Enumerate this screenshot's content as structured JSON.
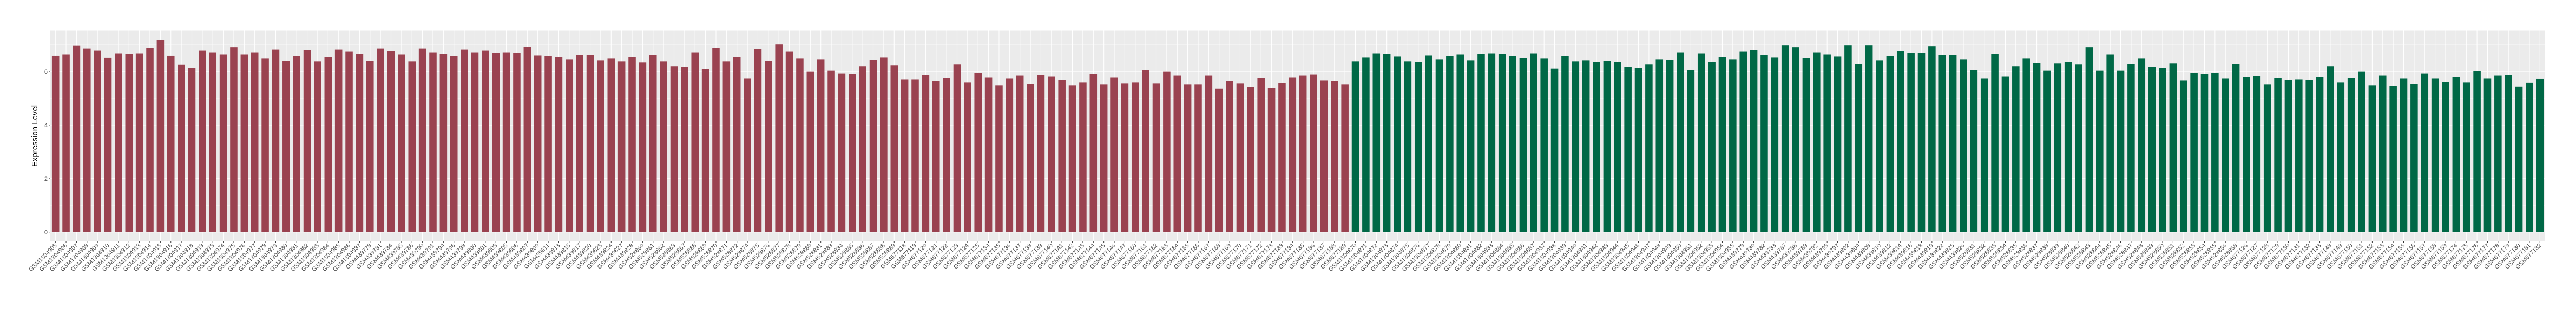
{
  "chart_data": {
    "type": "bar",
    "title": "",
    "xlabel": "",
    "ylabel": "Expression Level",
    "ylim": [
      -0.35,
      7.53
    ],
    "yticks": [
      0,
      2,
      4,
      6
    ],
    "grid": true,
    "background": "#EBEBEB",
    "series": [
      {
        "color": "#9A4250",
        "categories": [
          "GSM1304905",
          "GSM1304906",
          "GSM1304907",
          "GSM1304908",
          "GSM1304909",
          "GSM1304910",
          "GSM1304911",
          "GSM1304912",
          "GSM1304913",
          "GSM1304914",
          "GSM1304915",
          "GSM1304916",
          "GSM1304917",
          "GSM1304918",
          "GSM1304919",
          "GSM1304973",
          "GSM1304974",
          "GSM1304975",
          "GSM1304976",
          "GSM1304977",
          "GSM1304978",
          "GSM1304979",
          "GSM1304980",
          "GSM1304981",
          "GSM1304982",
          "GSM1304983",
          "GSM1304984",
          "GSM1304985",
          "GSM1304986",
          "GSM1304987",
          "GSM439778",
          "GSM439781",
          "GSM439784",
          "GSM439785",
          "GSM439786",
          "GSM439790",
          "GSM439791",
          "GSM439794",
          "GSM439796",
          "GSM439798",
          "GSM439800",
          "GSM439801",
          "GSM439803",
          "GSM439805",
          "GSM439806",
          "GSM439807",
          "GSM439809",
          "GSM439811",
          "GSM439813",
          "GSM439815",
          "GSM439817",
          "GSM439820",
          "GSM439823",
          "GSM439824",
          "GSM439827",
          "GSM439828",
          "GSM528860",
          "GSM528861",
          "GSM528862",
          "GSM528863",
          "GSM528867",
          "GSM528868",
          "GSM528869",
          "GSM528870",
          "GSM528871",
          "GSM528872",
          "GSM528874",
          "GSM528875",
          "GSM528876",
          "GSM528877",
          "GSM528878",
          "GSM528879",
          "GSM528880",
          "GSM528881",
          "GSM528883",
          "GSM528884",
          "GSM528885",
          "GSM528886",
          "GSM528887",
          "GSM528888",
          "GSM528889",
          "GSM677118",
          "GSM677119",
          "GSM677120",
          "GSM677121",
          "GSM677122",
          "GSM677123",
          "GSM677124",
          "GSM677125",
          "GSM677134",
          "GSM677135",
          "GSM677136",
          "GSM677137",
          "GSM677138",
          "GSM677139",
          "GSM677140",
          "GSM677141",
          "GSM677142",
          "GSM677143",
          "GSM677144",
          "GSM677145",
          "GSM677146",
          "GSM677147",
          "GSM677160",
          "GSM677161",
          "GSM677162",
          "GSM677163",
          "GSM677164",
          "GSM677165",
          "GSM677166",
          "GSM677167",
          "GSM677168",
          "GSM677169",
          "GSM677170",
          "GSM677171",
          "GSM677172",
          "GSM677173",
          "GSM677183",
          "GSM677184",
          "GSM677185",
          "GSM677186",
          "GSM677187",
          "GSM677188",
          "GSM677189"
        ],
        "values": [
          6.59,
          6.64,
          6.96,
          6.86,
          6.78,
          6.51,
          6.68,
          6.66,
          6.68,
          6.88,
          7.18,
          6.59,
          6.25,
          6.13,
          6.78,
          6.72,
          6.64,
          6.91,
          6.64,
          6.72,
          6.48,
          6.82,
          6.4,
          6.58,
          6.8,
          6.38,
          6.54,
          6.82,
          6.74,
          6.66,
          6.4,
          6.86,
          6.76,
          6.64,
          6.38,
          6.86,
          6.72,
          6.66,
          6.58,
          6.82,
          6.72,
          6.78,
          6.7,
          6.72,
          6.7,
          6.93,
          6.6,
          6.58,
          6.54,
          6.46,
          6.62,
          6.62,
          6.42,
          6.48,
          6.38,
          6.54,
          6.34,
          6.62,
          6.38,
          6.2,
          6.18,
          6.72,
          6.09,
          6.89,
          6.38,
          6.54,
          5.73,
          6.84,
          6.4,
          7.01,
          6.74,
          6.48,
          5.99,
          6.46,
          6.03,
          5.93,
          5.91,
          6.2,
          6.44,
          6.52,
          6.24,
          5.71,
          5.71,
          5.87,
          5.65,
          5.75,
          6.26,
          5.59,
          5.95,
          5.77,
          5.49,
          5.73,
          5.85,
          5.53,
          5.87,
          5.81,
          5.69,
          5.49,
          5.59,
          5.91,
          5.51,
          5.77,
          5.55,
          5.59,
          6.05,
          5.55,
          5.99,
          5.85,
          5.51,
          5.51,
          5.85,
          5.36,
          5.65,
          5.55,
          5.43,
          5.75,
          5.39,
          5.57,
          5.77,
          5.85,
          5.89,
          5.67,
          5.65,
          5.51
        ]
      },
      {
        "color": "#006846",
        "categories": [
          "GSM1304870",
          "GSM1304871",
          "GSM1304872",
          "GSM1304873",
          "GSM1304874",
          "GSM1304875",
          "GSM1304876",
          "GSM1304877",
          "GSM1304878",
          "GSM1304879",
          "GSM1304880",
          "GSM1304881",
          "GSM1304882",
          "GSM1304883",
          "GSM1304884",
          "GSM1304885",
          "GSM1304886",
          "GSM1304887",
          "GSM1304937",
          "GSM1304938",
          "GSM1304939",
          "GSM1304940",
          "GSM1304941",
          "GSM1304942",
          "GSM1304943",
          "GSM1304944",
          "GSM1304945",
          "GSM1304946",
          "GSM1304947",
          "GSM1304948",
          "GSM1304949",
          "GSM1304950",
          "GSM1304951",
          "GSM1304952",
          "GSM1304953",
          "GSM1304954",
          "GSM1304955",
          "GSM439779",
          "GSM439780",
          "GSM439782",
          "GSM439783",
          "GSM439787",
          "GSM439788",
          "GSM439789",
          "GSM439792",
          "GSM439793",
          "GSM439797",
          "GSM439802",
          "GSM439804",
          "GSM439808",
          "GSM439810",
          "GSM439812",
          "GSM439814",
          "GSM439816",
          "GSM439818",
          "GSM439819",
          "GSM439822",
          "GSM439825",
          "GSM439826",
          "GSM528831",
          "GSM528832",
          "GSM528833",
          "GSM528834",
          "GSM528835",
          "GSM528836",
          "GSM528837",
          "GSM528838",
          "GSM528839",
          "GSM528840",
          "GSM528842",
          "GSM528843",
          "GSM528844",
          "GSM528845",
          "GSM528846",
          "GSM528847",
          "GSM528848",
          "GSM528849",
          "GSM528850",
          "GSM528851",
          "GSM528852",
          "GSM528853",
          "GSM528854",
          "GSM528855",
          "GSM528856",
          "GSM528858",
          "GSM677126",
          "GSM677127",
          "GSM677128",
          "GSM677129",
          "GSM677130",
          "GSM677131",
          "GSM677132",
          "GSM677133",
          "GSM677148",
          "GSM677149",
          "GSM677150",
          "GSM677151",
          "GSM677152",
          "GSM677153",
          "GSM677154",
          "GSM677155",
          "GSM677156",
          "GSM677157",
          "GSM677158",
          "GSM677159",
          "GSM677174",
          "GSM677175",
          "GSM677176",
          "GSM677177",
          "GSM677178",
          "GSM677179",
          "GSM677180",
          "GSM677181",
          "GSM677182"
        ],
        "values": [
          6.38,
          6.52,
          6.68,
          6.66,
          6.56,
          6.38,
          6.36,
          6.6,
          6.46,
          6.58,
          6.64,
          6.42,
          6.66,
          6.68,
          6.66,
          6.58,
          6.5,
          6.68,
          6.48,
          6.11,
          6.58,
          6.38,
          6.42,
          6.36,
          6.4,
          6.36,
          6.18,
          6.14,
          6.26,
          6.46,
          6.44,
          6.72,
          6.05,
          6.68,
          6.36,
          6.54,
          6.46,
          6.74,
          6.8,
          6.62,
          6.52,
          6.97,
          6.91,
          6.5,
          6.72,
          6.64,
          6.56,
          6.97,
          6.28,
          6.97,
          6.42,
          6.58,
          6.76,
          6.7,
          6.7,
          6.95,
          6.62,
          6.62,
          6.46,
          6.05,
          5.73,
          6.66,
          5.81,
          6.2,
          6.48,
          6.32,
          6.03,
          6.3,
          6.36,
          6.26,
          6.91,
          6.03,
          6.64,
          6.03,
          6.28,
          6.48,
          6.18,
          6.14,
          6.3,
          5.67,
          5.95,
          5.91,
          5.95,
          5.73,
          6.28,
          5.79,
          5.83,
          5.51,
          5.75,
          5.69,
          5.71,
          5.69,
          5.79,
          6.2,
          5.59,
          5.75,
          5.99,
          5.49,
          5.85,
          5.47,
          5.73,
          5.53,
          5.93,
          5.73,
          5.61,
          5.79,
          5.59,
          6.01,
          5.73,
          5.85,
          5.87,
          5.44,
          5.58,
          5.72
        ]
      }
    ]
  }
}
